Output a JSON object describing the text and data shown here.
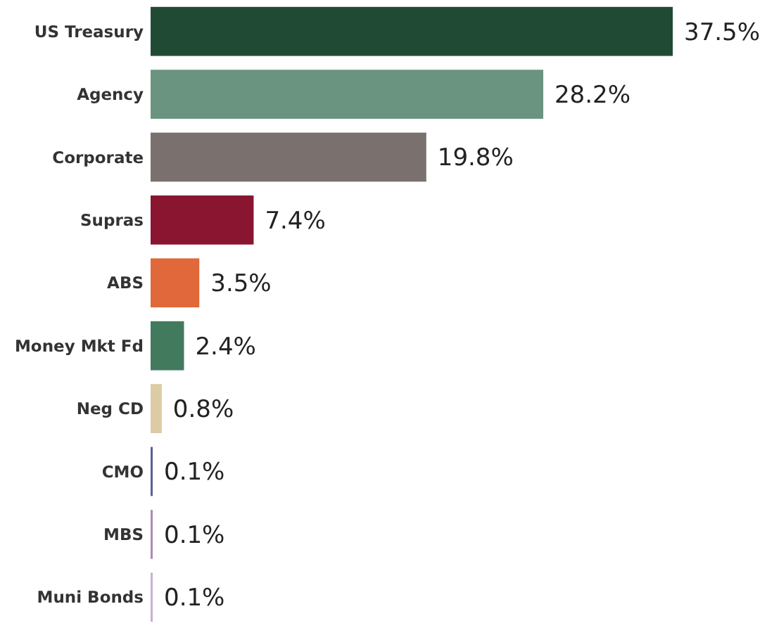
{
  "chart_data": {
    "type": "bar",
    "orientation": "horizontal",
    "categories": [
      "US Treasury",
      "Agency",
      "Corporate",
      "Supras",
      "ABS",
      "Money Mkt Fd",
      "Neg CD",
      "CMO",
      "MBS",
      "Muni Bonds"
    ],
    "values": [
      37.5,
      28.2,
      19.8,
      7.4,
      3.5,
      2.4,
      0.8,
      0.1,
      0.1,
      0.1
    ],
    "value_labels": [
      "37.5%",
      "28.2%",
      "19.8%",
      "7.4%",
      "3.5%",
      "2.4%",
      "0.8%",
      "0.1%",
      "0.1%",
      "0.1%"
    ],
    "colors": [
      "#214a35",
      "#6a9480",
      "#7a716e",
      "#8a1530",
      "#e0683a",
      "#427a5e",
      "#dccba4",
      "#5a5f9a",
      "#b088b8",
      "#c8b0d0"
    ]
  }
}
